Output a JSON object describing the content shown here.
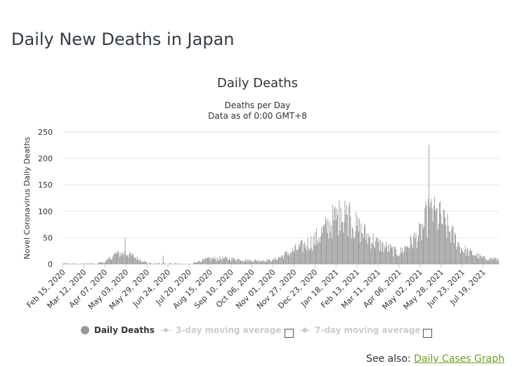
{
  "page": {
    "title": "Daily New Deaths in Japan"
  },
  "chart_data": {
    "type": "bar",
    "title": "Daily Deaths",
    "subtitle_lines": [
      "Deaths per Day",
      "Data as of 0:00 GMT+8"
    ],
    "xlabel": "",
    "ylabel": "Novel Coronavirus Daily Deaths",
    "ylim": [
      0,
      250
    ],
    "yticks": [
      0,
      50,
      100,
      150,
      200,
      250
    ],
    "grid": true,
    "bar_color": "#999999",
    "x_tick_labels": [
      "Feb 15, 2020",
      "Mar 12, 2020",
      "Apr 07, 2020",
      "May 03, 2020",
      "May 29, 2020",
      "Jun 24, 2020",
      "Jul 20, 2020",
      "Aug 15, 2020",
      "Sep 10, 2020",
      "Oct 06, 2020",
      "Nov 01, 2020",
      "Nov 27, 2020",
      "Dec 23, 2020",
      "Jan 18, 2021",
      "Feb 13, 2021",
      "Mar 11, 2021",
      "Apr 06, 2021",
      "May 02, 2021",
      "May 28, 2021",
      "Jun 23, 2021",
      "Jul 19, 2021"
    ],
    "categories_start": "Feb 15, 2020",
    "categories_end": "Aug 07, 2021",
    "trend_keypoints": [
      {
        "date": "Feb 15, 2020",
        "value": 0
      },
      {
        "date": "Mar 12, 2020",
        "value": 1
      },
      {
        "date": "Apr 07, 2020",
        "value": 4
      },
      {
        "date": "Apr 20, 2020",
        "value": 20
      },
      {
        "date": "May 03, 2020",
        "value": 22
      },
      {
        "date": "May 29, 2020",
        "value": 3
      },
      {
        "date": "Jun 24, 2020",
        "value": 1
      },
      {
        "date": "Jul 20, 2020",
        "value": 1
      },
      {
        "date": "Aug 15, 2020",
        "value": 11
      },
      {
        "date": "Sep 10, 2020",
        "value": 11
      },
      {
        "date": "Oct 06, 2020",
        "value": 7
      },
      {
        "date": "Nov 01, 2020",
        "value": 8
      },
      {
        "date": "Nov 27, 2020",
        "value": 27
      },
      {
        "date": "Dec 23, 2020",
        "value": 48
      },
      {
        "date": "Jan 18, 2021",
        "value": 92
      },
      {
        "date": "Feb 01, 2021",
        "value": 95
      },
      {
        "date": "Feb 13, 2021",
        "value": 72
      },
      {
        "date": "Mar 11, 2021",
        "value": 40
      },
      {
        "date": "Apr 06, 2021",
        "value": 22
      },
      {
        "date": "May 02, 2021",
        "value": 60
      },
      {
        "date": "May 14, 2021",
        "value": 100
      },
      {
        "date": "May 28, 2021",
        "value": 90
      },
      {
        "date": "Jun 23, 2021",
        "value": 30
      },
      {
        "date": "Jul 19, 2021",
        "value": 12
      },
      {
        "date": "Aug 07, 2021",
        "value": 10
      }
    ],
    "spikes": [
      {
        "date": "May 02, 2020",
        "value": 49
      },
      {
        "date": "Jun 18, 2020",
        "value": 16
      },
      {
        "date": "Jan 24, 2021",
        "value": 108
      },
      {
        "date": "Jan 29, 2021",
        "value": 120
      },
      {
        "date": "Feb 04, 2021",
        "value": 117
      },
      {
        "date": "May 09, 2021",
        "value": 119
      },
      {
        "date": "May 13, 2021",
        "value": 226
      },
      {
        "date": "May 19, 2021",
        "value": 110
      },
      {
        "date": "May 26, 2021",
        "value": 116
      }
    ],
    "series": [
      {
        "name": "Daily Deaths"
      }
    ]
  },
  "legend": {
    "items": [
      {
        "label": "Daily Deaths",
        "active": true
      },
      {
        "label": "3-day moving average",
        "active": false
      },
      {
        "label": "7-day moving average",
        "active": false
      }
    ]
  },
  "see_also": {
    "prefix": "See also:",
    "link": "Daily Cases Graph"
  }
}
